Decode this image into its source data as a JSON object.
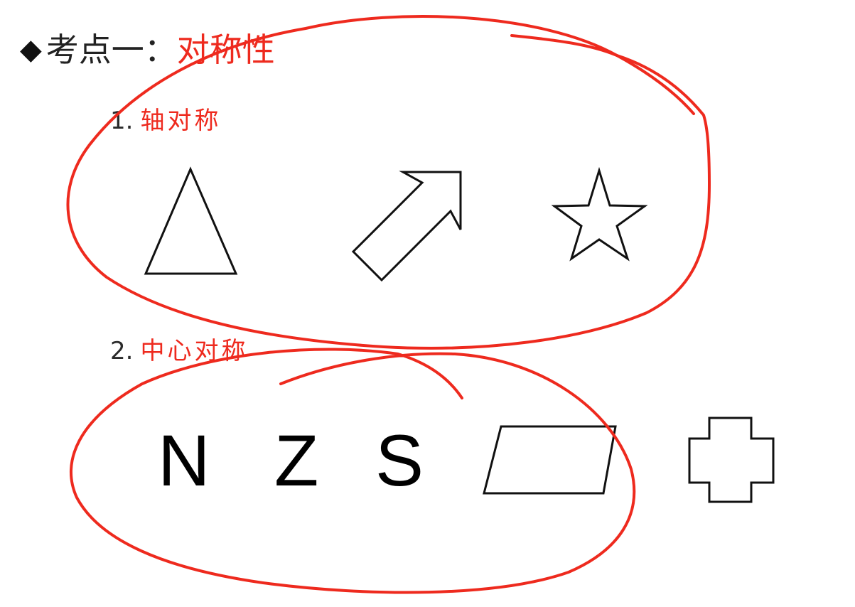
{
  "title": {
    "bullet": "◆",
    "prefix": "考点一：",
    "topic": "对称性"
  },
  "section_1": {
    "number": "1.",
    "label": "轴对称"
  },
  "section_2": {
    "number": "2.",
    "label": "中心对称"
  },
  "letters": [
    "N",
    "Z",
    "S"
  ],
  "colors": {
    "accent": "#ee2a1e",
    "text": "#222222",
    "shape_stroke": "#111111"
  }
}
